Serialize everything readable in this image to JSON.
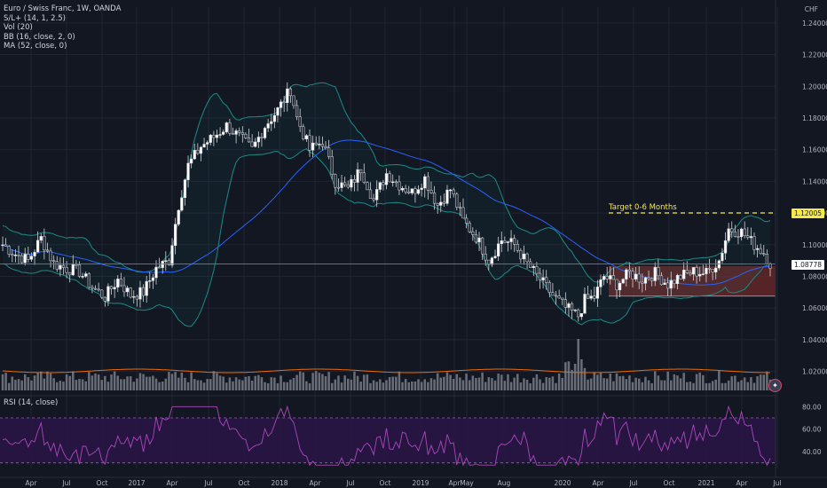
{
  "legend": {
    "symbol": "Euro / Swiss Franc, 1W, OANDA",
    "studies": [
      "S/L+ (14, 1, 2.5)",
      "Vol (20)",
      "BB (16, close, 2, 0)",
      "MA (52, close, 0)"
    ]
  },
  "rsi_title": "RSI (14, close)",
  "currency_label": "CHF",
  "colors": {
    "background": "#131722",
    "candle_up": "#ffffff",
    "candle_down": "#2a2e39",
    "bb": "#1b8a86",
    "ma": "#2962ff",
    "rsi": "#7b1fa2",
    "rsi_band": "#2a1545",
    "target": "#f5e94d",
    "zone": "#6d2a2a",
    "volume": "#8f939c"
  },
  "chart_data": [
    {
      "type": "candlestick",
      "name": "main",
      "x_ticks": [
        "Apr",
        "Jul",
        "Oct",
        "2017",
        "Apr",
        "Jul",
        "Oct",
        "2018",
        "Apr",
        "Jul",
        "Oct",
        "2019",
        "Apr",
        "May",
        "Aug",
        "2020",
        "Apr",
        "Jul",
        "Oct",
        "2021",
        "Apr",
        "Jul"
      ],
      "y_ticks": [
        "1.24000",
        "1.22000",
        "1.20000",
        "1.18000",
        "1.16000",
        "1.14000",
        "1.12000",
        "1.10000",
        "1.08000",
        "1.06000",
        "1.04000",
        "1.02000"
      ],
      "ylim": [
        1.008,
        1.25
      ],
      "current_price": 1.08778,
      "current_price_label": "1.08778",
      "target_price": 1.12005,
      "target_price_label": "1.12005",
      "annotation": "Target 0-6 Months",
      "demand_zone": {
        "low": 1.0675,
        "high": 1.0865
      },
      "close_anchors": [
        [
          0,
          1.1
        ],
        [
          4,
          1.094
        ],
        [
          8,
          1.09
        ],
        [
          12,
          1.104
        ],
        [
          16,
          1.088
        ],
        [
          20,
          1.085
        ],
        [
          24,
          1.083
        ],
        [
          28,
          1.073
        ],
        [
          32,
          1.067
        ],
        [
          36,
          1.078
        ],
        [
          40,
          1.068
        ],
        [
          44,
          1.07
        ],
        [
          48,
          1.085
        ],
        [
          52,
          1.09
        ],
        [
          55,
          1.125
        ],
        [
          58,
          1.15
        ],
        [
          62,
          1.162
        ],
        [
          66,
          1.168
        ],
        [
          70,
          1.175
        ],
        [
          74,
          1.168
        ],
        [
          78,
          1.16
        ],
        [
          82,
          1.175
        ],
        [
          86,
          1.185
        ],
        [
          90,
          1.198
        ],
        [
          92,
          1.18
        ],
        [
          96,
          1.16
        ],
        [
          100,
          1.165
        ],
        [
          104,
          1.14
        ],
        [
          108,
          1.135
        ],
        [
          112,
          1.148
        ],
        [
          116,
          1.128
        ],
        [
          120,
          1.145
        ],
        [
          124,
          1.138
        ],
        [
          128,
          1.133
        ],
        [
          132,
          1.142
        ],
        [
          136,
          1.125
        ],
        [
          140,
          1.135
        ],
        [
          144,
          1.115
        ],
        [
          148,
          1.105
        ],
        [
          152,
          1.09
        ],
        [
          156,
          1.103
        ],
        [
          160,
          1.1
        ],
        [
          164,
          1.088
        ],
        [
          168,
          1.078
        ],
        [
          172,
          1.068
        ],
        [
          176,
          1.06
        ],
        [
          180,
          1.055
        ],
        [
          182,
          1.065
        ],
        [
          185,
          1.067
        ],
        [
          188,
          1.08
        ],
        [
          192,
          1.075
        ],
        [
          196,
          1.082
        ],
        [
          200,
          1.078
        ],
        [
          204,
          1.082
        ],
        [
          208,
          1.075
        ],
        [
          212,
          1.08
        ],
        [
          216,
          1.083
        ],
        [
          220,
          1.082
        ],
        [
          224,
          1.09
        ],
        [
          227,
          1.11
        ],
        [
          231,
          1.108
        ],
        [
          235,
          1.1
        ],
        [
          238,
          1.095
        ],
        [
          240,
          1.088
        ]
      ],
      "up_first_weeks": 4
    },
    {
      "type": "bar",
      "name": "volume",
      "values_note": "weekly volume (relative)",
      "ma_period": 20
    },
    {
      "type": "line",
      "name": "RSI (14, close)",
      "y_ticks": [
        "80.00",
        "60.00",
        "40.00"
      ],
      "ylim": [
        25,
        85
      ],
      "bands": [
        70,
        30
      ]
    }
  ]
}
